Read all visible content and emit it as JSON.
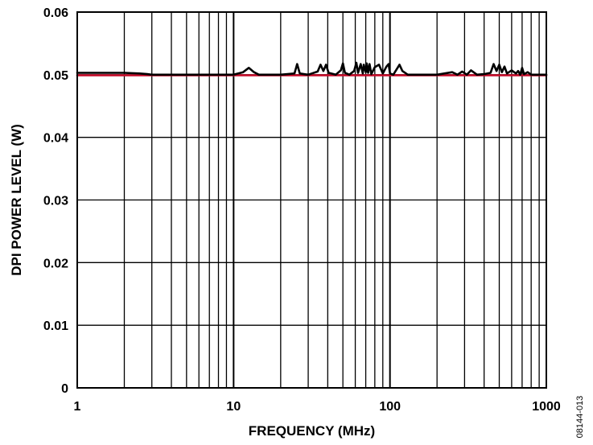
{
  "chart_data": {
    "type": "line",
    "xlabel": "FREQUENCY (MHz)",
    "ylabel": "DPI POWER LEVEL (W)",
    "x_scale": "log",
    "xlim": [
      1,
      1000
    ],
    "ylim": [
      0,
      0.06
    ],
    "x_ticks": [
      "1",
      "10",
      "100",
      "1000"
    ],
    "y_ticks": [
      "0",
      "0.01",
      "0.02",
      "0.03",
      "0.04",
      "0.05",
      "0.06"
    ],
    "grid": true,
    "figure_id": "08144-013",
    "series": [
      {
        "color": "#c8102e",
        "x": [
          1,
          1000
        ],
        "y": [
          0.0499,
          0.0499
        ]
      },
      {
        "color": "#000000",
        "x": [
          1,
          1.5,
          2.0,
          2.5,
          2.8,
          3.0,
          5,
          10,
          11.5,
          12.5,
          13.5,
          14.5,
          20,
          24.5,
          25.5,
          26.5,
          30,
          34.5,
          36,
          37.5,
          39,
          40.5,
          45,
          48.5,
          50,
          51.5,
          55,
          59,
          61,
          62.5,
          65,
          67,
          68,
          70,
          71,
          72.5,
          74,
          76,
          80,
          85,
          90,
          95,
          98,
          100,
          105,
          110,
          115,
          120,
          130,
          140,
          200,
          250,
          270,
          290,
          310,
          330,
          360,
          400,
          440,
          460,
          480,
          500,
          520,
          540,
          560,
          600,
          640,
          660,
          680,
          700,
          720,
          760,
          800,
          1000
        ],
        "y": [
          0.0503,
          0.0503,
          0.0503,
          0.0502,
          0.0501,
          0.05,
          0.05,
          0.05,
          0.0504,
          0.0511,
          0.0504,
          0.05,
          0.05,
          0.0502,
          0.0517,
          0.0502,
          0.05,
          0.0505,
          0.0516,
          0.0506,
          0.0516,
          0.0503,
          0.05,
          0.0507,
          0.0518,
          0.0503,
          0.05,
          0.0506,
          0.0519,
          0.0503,
          0.0517,
          0.0502,
          0.0516,
          0.0504,
          0.0518,
          0.0503,
          0.0517,
          0.0501,
          0.0512,
          0.0516,
          0.0502,
          0.0513,
          0.0517,
          0.0502,
          0.05,
          0.0508,
          0.0516,
          0.0506,
          0.05,
          0.05,
          0.05,
          0.0504,
          0.05,
          0.0505,
          0.05,
          0.0507,
          0.05,
          0.0501,
          0.0503,
          0.0517,
          0.0506,
          0.0516,
          0.0504,
          0.0513,
          0.0502,
          0.0507,
          0.0502,
          0.0506,
          0.05,
          0.0511,
          0.0501,
          0.0504,
          0.05,
          0.05
        ]
      }
    ]
  }
}
